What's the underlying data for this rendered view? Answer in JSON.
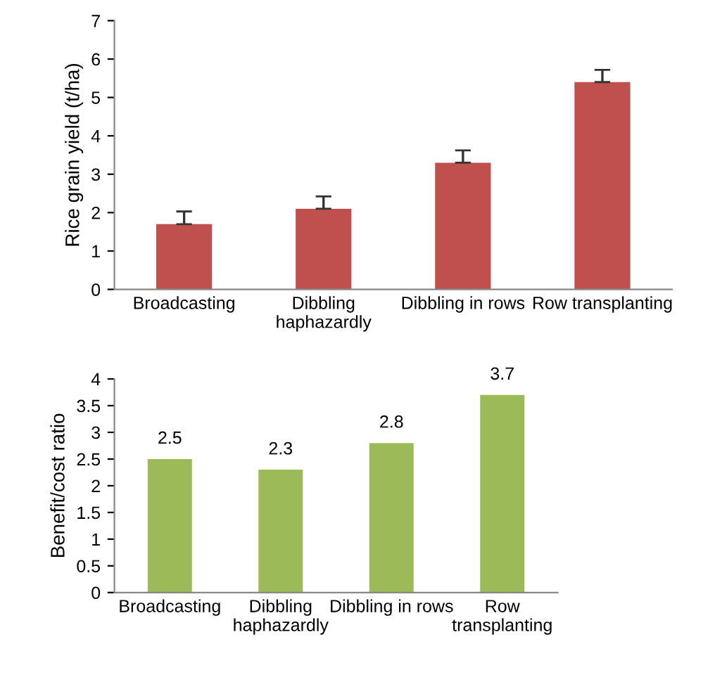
{
  "chart_data": [
    {
      "type": "bar",
      "ylabel": "Rice grain yield (t/ha)",
      "categories": [
        "Broadcasting",
        "Dibbling\nhaphazardly",
        "Dibbling in rows",
        "Row transplanting"
      ],
      "values": [
        1.7,
        2.1,
        3.3,
        5.4
      ],
      "errors": [
        0.33,
        0.32,
        0.32,
        0.32
      ],
      "color": "#c0504d",
      "ylim": [
        0,
        7
      ],
      "yticks": [
        0,
        1,
        2,
        3,
        4,
        5,
        6,
        7
      ],
      "grid": false,
      "legend": false
    },
    {
      "type": "bar",
      "ylabel": "Benefit/cost ratio",
      "categories": [
        "Broadcasting",
        "Dibbling\nhaphazardly",
        "Dibbling in rows",
        "Row\ntransplanting"
      ],
      "values": [
        2.5,
        2.3,
        2.8,
        3.7
      ],
      "color": "#9bbb59",
      "data_labels": true,
      "ylim": [
        0,
        4
      ],
      "yticks": [
        0,
        0.5,
        1,
        1.5,
        2,
        2.5,
        3,
        3.5,
        4
      ],
      "grid": false,
      "legend": false
    }
  ]
}
